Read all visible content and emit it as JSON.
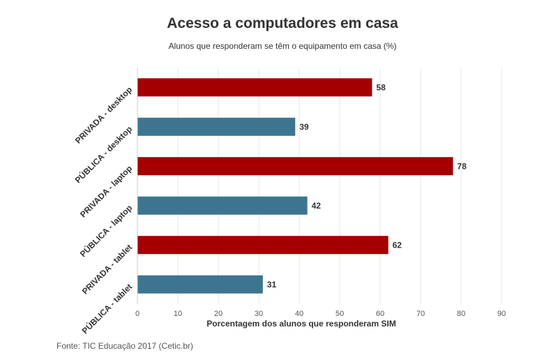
{
  "chart_data": {
    "type": "bar",
    "orientation": "horizontal",
    "title": "Acesso a computadores em casa",
    "subtitle": "Alunos que responderam se têm o equipamento em casa (%)",
    "categories": [
      "PRIVADA - desktop",
      "PÚBLICA - desktop",
      "PRIVADA - laptop",
      "PÚBLICA - laptop",
      "PRIVADA - tablet",
      "PÚBLICA - tablet"
    ],
    "values": [
      58,
      39,
      78,
      42,
      62,
      31
    ],
    "colors": [
      "#a50000",
      "#3d7591",
      "#a50000",
      "#3d7591",
      "#a50000",
      "#3d7591"
    ],
    "xlabel": "Porcentagem dos alunos que responderam SIM",
    "ylabel": "",
    "xlim": [
      0,
      90
    ],
    "xticks": [
      0,
      10,
      20,
      30,
      40,
      50,
      60,
      70,
      80,
      90
    ],
    "grid": true,
    "data_labels": true
  },
  "source": "Fonte: TIC Educação 2017 (Cetic.br)"
}
